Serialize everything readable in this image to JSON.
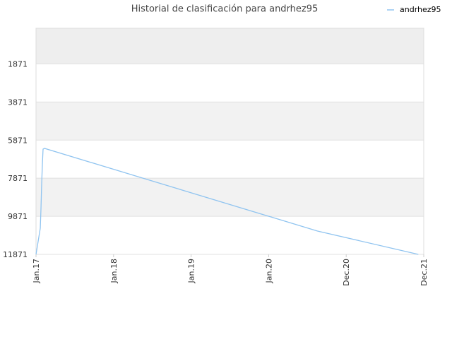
{
  "chart_data": {
    "type": "line",
    "title": "Historial de clasificación para andrhez95",
    "x": [
      0,
      0.055,
      0.064,
      0.073,
      0.082,
      0.091,
      0.11,
      3.63,
      4.93
    ],
    "series": [
      {
        "name": "andrhez95",
        "color": "#90c4f0",
        "values": [
          11871,
          10498,
          9460,
          8161,
          7122,
          6343,
          6306,
          10646,
          11871
        ]
      }
    ],
    "xlim": [
      0,
      5
    ],
    "xticks": [
      {
        "value": 0,
        "label": "Jan.17"
      },
      {
        "value": 1,
        "label": "Jan.18"
      },
      {
        "value": 2,
        "label": "Jan.19"
      },
      {
        "value": 3,
        "label": "Jan.20"
      },
      {
        "value": 4,
        "label": "Dec.20"
      },
      {
        "value": 5,
        "label": "Dec.21"
      }
    ],
    "ylim": [
      11871,
      0
    ],
    "yticks": [
      1871,
      3871,
      5871,
      7871,
      9871,
      11871
    ],
    "grid": true,
    "legend": "top-right"
  }
}
